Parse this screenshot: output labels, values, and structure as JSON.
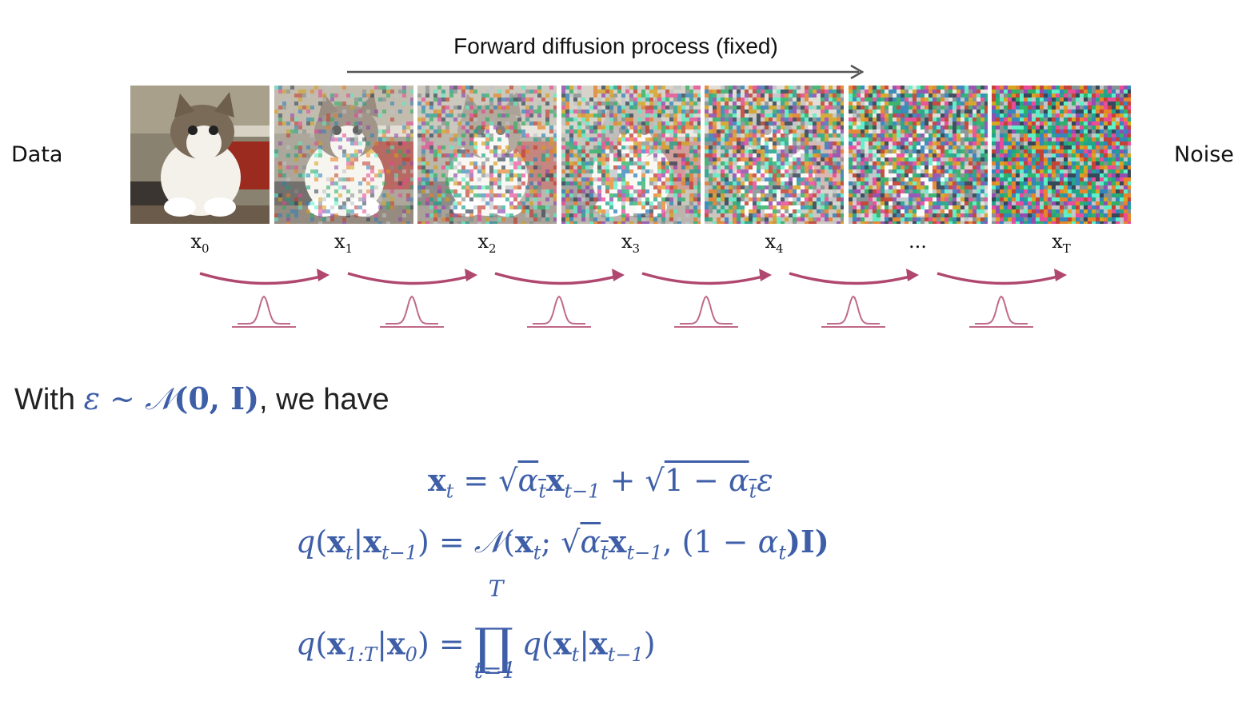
{
  "header": {
    "title": "Forward diffusion process (fixed)",
    "left_label": "Data",
    "right_label": "Noise"
  },
  "frames": [
    {
      "label_base": "x",
      "label_sub": "0",
      "noise_level": 0.0
    },
    {
      "label_base": "x",
      "label_sub": "1",
      "noise_level": 0.35
    },
    {
      "label_base": "x",
      "label_sub": "2",
      "noise_level": 0.5
    },
    {
      "label_base": "x",
      "label_sub": "3",
      "noise_level": 0.65
    },
    {
      "label_base": "x",
      "label_sub": "4",
      "noise_level": 0.78
    },
    {
      "label_base": "...",
      "label_sub": "",
      "noise_level": 0.9
    },
    {
      "label_base": "x",
      "label_sub": "T",
      "noise_level": 1.0
    }
  ],
  "colors": {
    "text": "#111111",
    "math_blue": "#3e5fa8",
    "arrow_pink": "#b0476e",
    "gaussian_pink": "#c06a8a"
  },
  "body": {
    "with_prefix": "With ",
    "epsilon": "ε",
    "sim": " ∼ ",
    "normal": "𝒩",
    "normal_args": "(0, I)",
    "with_suffix": ", we have"
  },
  "equations": {
    "eq1": {
      "lhs": "x",
      "lhs_sub": "t",
      "rhs_a": " = √",
      "alpha": "α",
      "alpha_sub": "t",
      "x2": "x",
      "x2_sub": "t−1",
      "plus": " + √",
      "one_minus": "1 − ",
      "alpha2": "α",
      "alpha2_sub": "t",
      "eps": "ε"
    },
    "eq2": {
      "q": "q",
      "open": "(",
      "x": "x",
      "x_sub": "t",
      "bar": "|",
      "x2": "x",
      "x2_sub": "t−1",
      "close_eq": ") = ",
      "normal": "𝒩",
      "open2": "(",
      "x3": "x",
      "x3_sub": "t",
      "semi": "; √",
      "alpha": "α",
      "alpha_sub": "t",
      "x4": "x",
      "x4_sub": "t−1",
      "mid": ", (1 − ",
      "alpha2": "α",
      "alpha2_sub": "t",
      "end": ")I)"
    },
    "eq3": {
      "q": "q",
      "open": "(",
      "x": "x",
      "x_sub": "1:T",
      "bar": "|",
      "x2": "x",
      "x2_sub": "0",
      "close_eq": ") = ",
      "prod_top": "T",
      "prod_sym": "∏",
      "prod_bot": "t=1",
      "q2": "q",
      "open2": "(",
      "x3": "x",
      "x3_sub": "t",
      "bar2": "|",
      "x4": "x",
      "x4_sub": "t−1",
      "end": ")"
    }
  }
}
